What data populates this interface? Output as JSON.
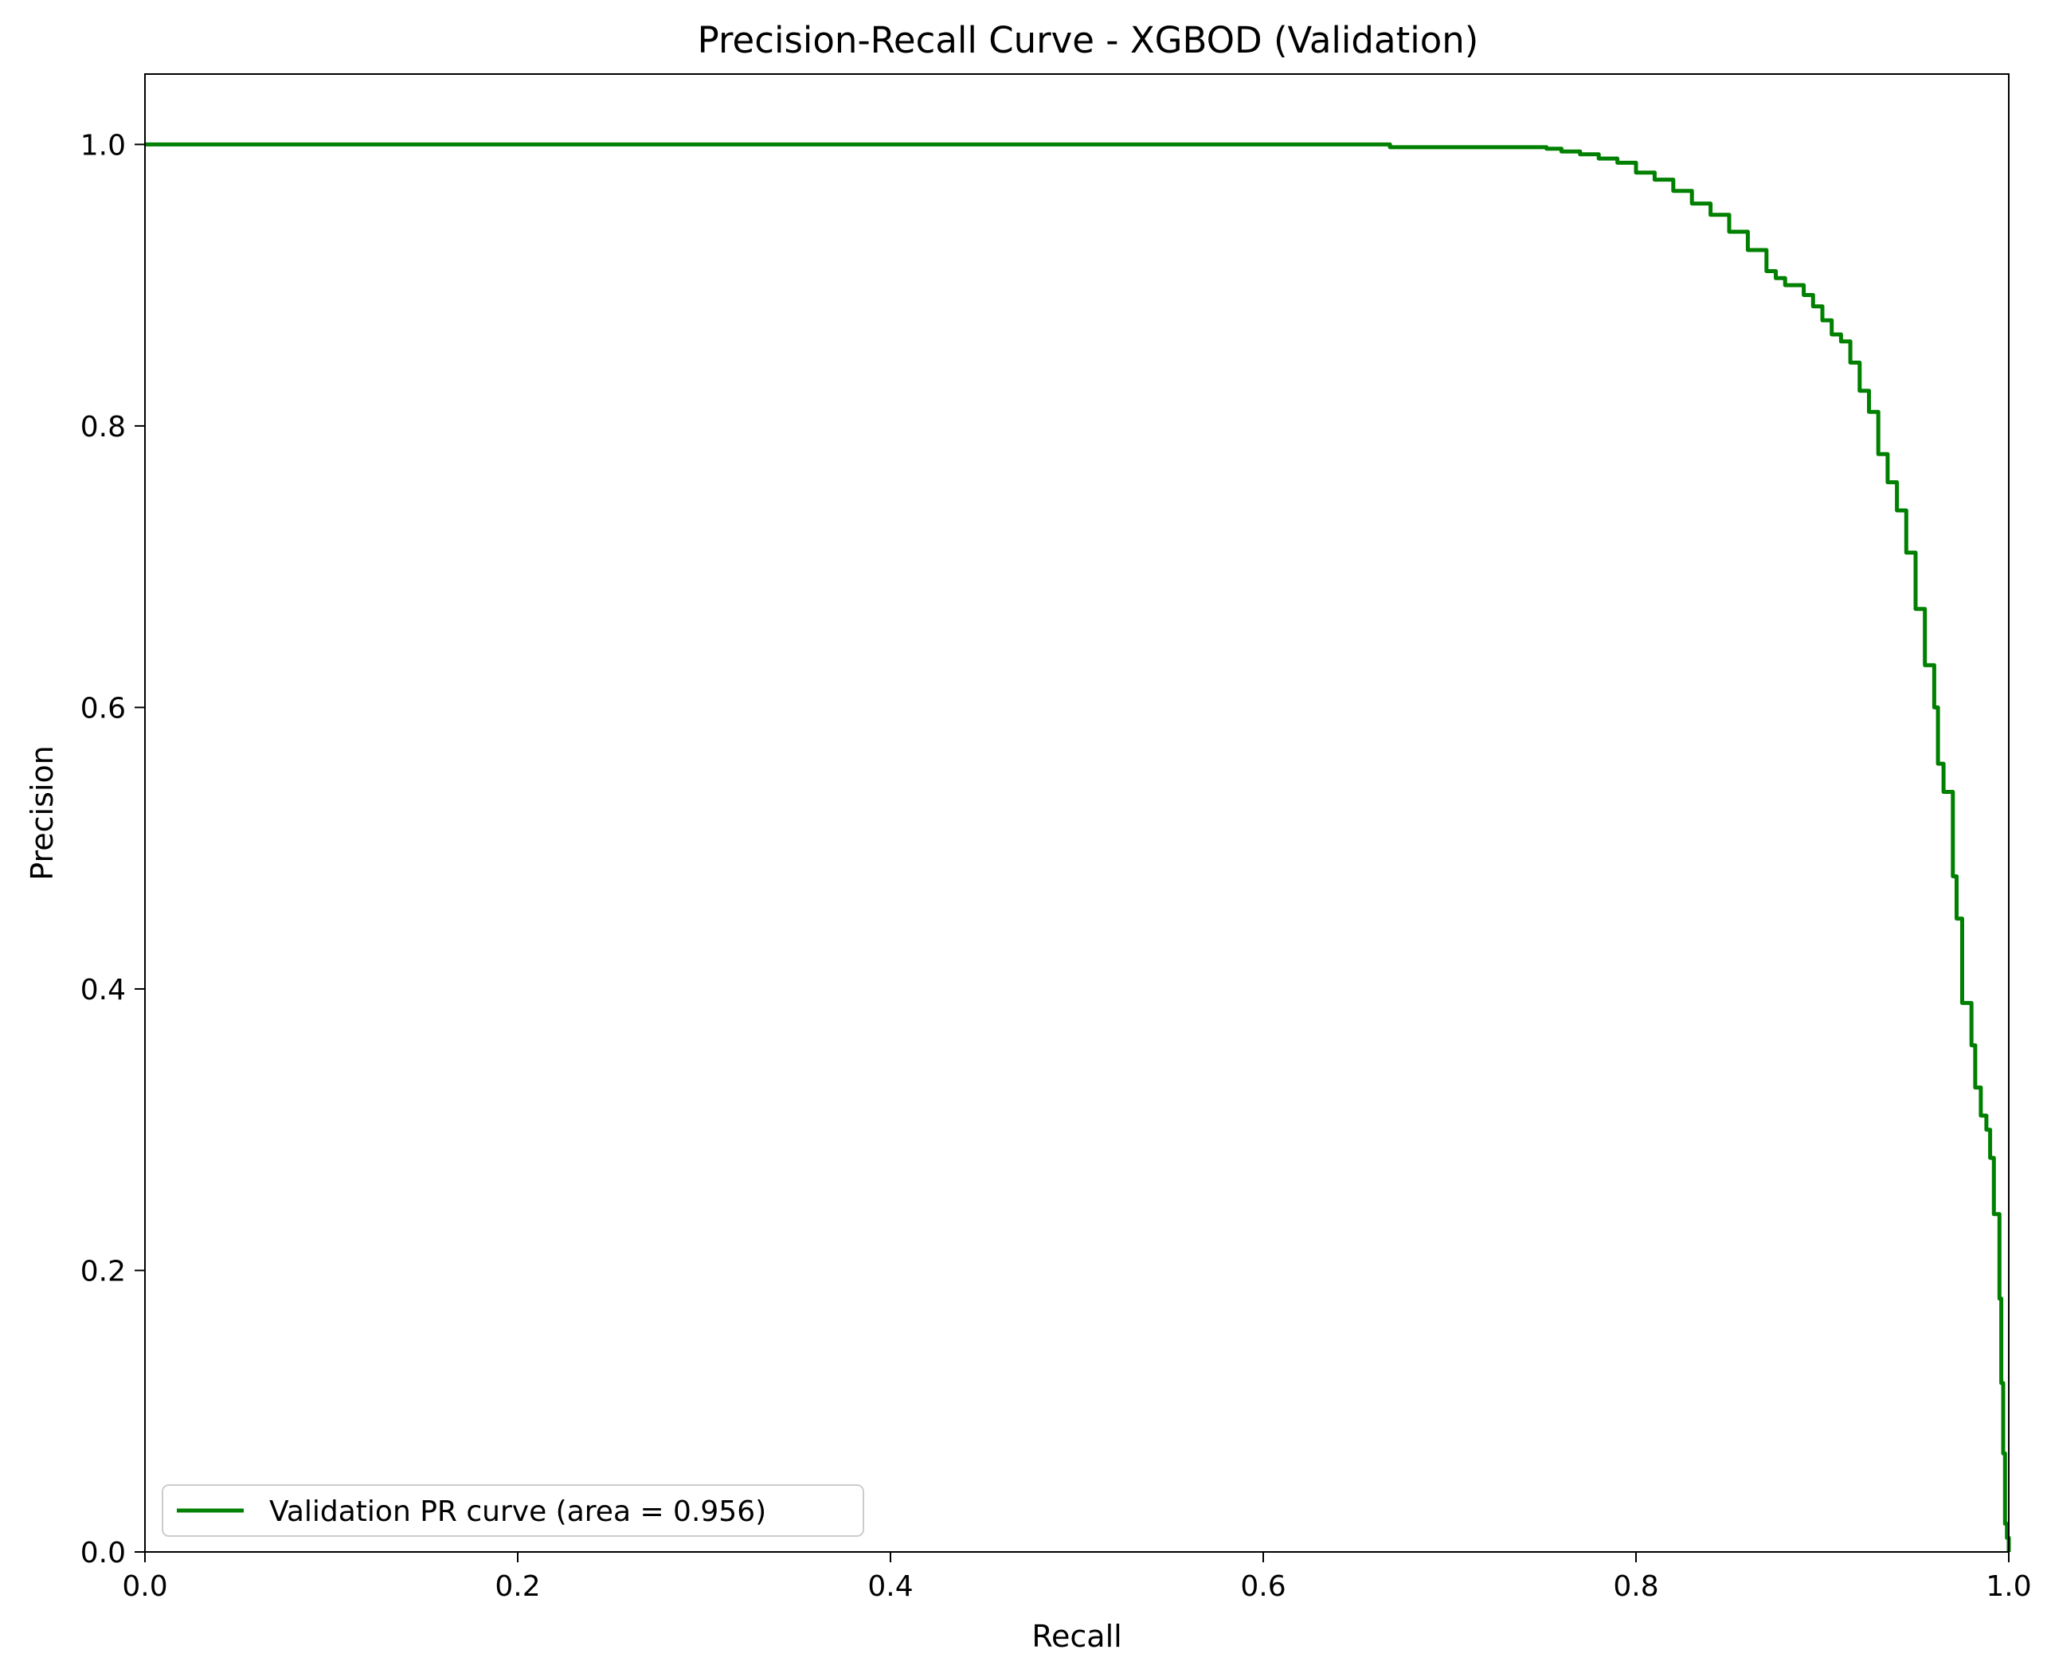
{
  "chart_data": {
    "type": "line",
    "title": "Precision-Recall Curve - XGBOD (Validation)",
    "xlabel": "Recall",
    "ylabel": "Precision",
    "xlim": [
      0.0,
      1.0
    ],
    "ylim": [
      0.0,
      1.05
    ],
    "xticks": [
      0.0,
      0.2,
      0.4,
      0.6,
      0.8,
      1.0
    ],
    "xtick_labels": [
      "0.0",
      "0.2",
      "0.4",
      "0.6",
      "0.8",
      "1.0"
    ],
    "yticks": [
      0.0,
      0.2,
      0.4,
      0.6,
      0.8,
      1.0
    ],
    "ytick_labels": [
      "0.0",
      "0.2",
      "0.4",
      "0.6",
      "0.8",
      "1.0"
    ],
    "grid": false,
    "legend_position": "lower-left",
    "series": [
      {
        "name": "Validation PR curve (area = 0.956)",
        "color": "#008000",
        "x": [
          0.0,
          0.663,
          0.668,
          0.7,
          0.75,
          0.752,
          0.76,
          0.77,
          0.78,
          0.79,
          0.8,
          0.81,
          0.82,
          0.83,
          0.84,
          0.85,
          0.86,
          0.87,
          0.875,
          0.88,
          0.89,
          0.895,
          0.9,
          0.905,
          0.91,
          0.915,
          0.92,
          0.925,
          0.93,
          0.935,
          0.94,
          0.945,
          0.95,
          0.955,
          0.96,
          0.962,
          0.965,
          0.97,
          0.972,
          0.975,
          0.98,
          0.982,
          0.985,
          0.988,
          0.99,
          0.992,
          0.994,
          0.995,
          0.996,
          0.997,
          0.998,
          0.999,
          1.0
        ],
        "y": [
          1.0,
          1.0,
          0.998,
          0.998,
          0.998,
          0.997,
          0.995,
          0.993,
          0.99,
          0.987,
          0.98,
          0.975,
          0.967,
          0.958,
          0.95,
          0.938,
          0.925,
          0.91,
          0.905,
          0.9,
          0.893,
          0.885,
          0.875,
          0.865,
          0.86,
          0.845,
          0.825,
          0.81,
          0.78,
          0.76,
          0.74,
          0.71,
          0.67,
          0.63,
          0.6,
          0.56,
          0.54,
          0.48,
          0.45,
          0.39,
          0.36,
          0.33,
          0.31,
          0.3,
          0.28,
          0.24,
          0.24,
          0.18,
          0.12,
          0.07,
          0.02,
          0.01,
          0.0
        ]
      }
    ]
  }
}
